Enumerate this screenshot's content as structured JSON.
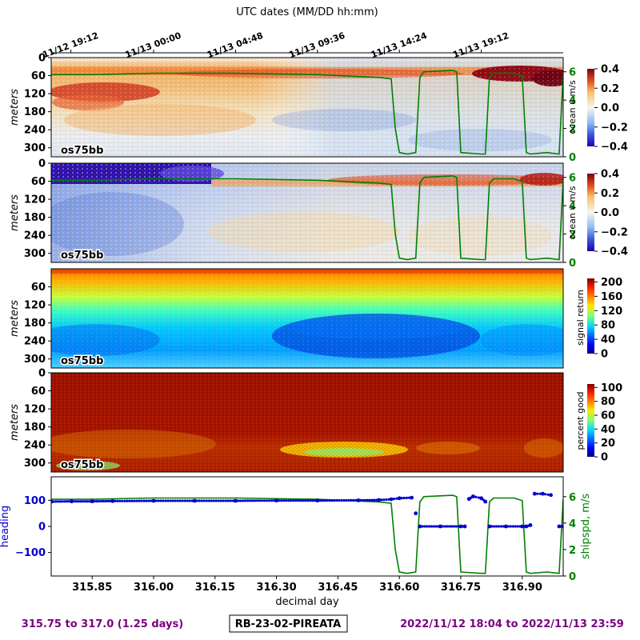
{
  "figure": {
    "top_axis_title": "UTC dates (MM/DD hh:mm)",
    "top_ticks": [
      {
        "x": 315.798,
        "label": "11/12 19:12"
      },
      {
        "x": 316.0,
        "label": "11/13 00:00"
      },
      {
        "x": 316.2,
        "label": "11/13 04:48"
      },
      {
        "x": 316.4,
        "label": "11/13 09:36"
      },
      {
        "x": 316.6,
        "label": "11/13 14:24"
      },
      {
        "x": 316.8,
        "label": "11/13 19:12"
      }
    ],
    "footer": {
      "range": "315.75 to 317.0 (1.25 days)",
      "cruise": "RB-23-02-PIREATA",
      "dates": "2022/11/12 18:04 to 2022/11/13 23:59"
    },
    "colors": {
      "title_purple": "#7b0082",
      "shipspd_green": "#008000",
      "heading_blue": "#0000cc"
    }
  },
  "chart_data": [
    {
      "type": "heatmap",
      "panel": "ocean-u",
      "instrument_label": "os75bb",
      "ylabel": "meters",
      "yticks": [
        0,
        60,
        120,
        180,
        240,
        300
      ],
      "ylim": [
        330,
        0
      ],
      "colorbar": {
        "label": "ocean u m/s",
        "ticks": [
          "0.4",
          "0.2",
          "0.0",
          "−0.2",
          "−0.4"
        ],
        "range": [
          -0.4,
          0.4
        ],
        "colormap": "RdYlBu_r"
      },
      "right_axis": {
        "ticks": [
          "6",
          "4",
          "2",
          "0"
        ],
        "range": [
          0,
          7
        ],
        "color": "#008000"
      }
    },
    {
      "type": "heatmap",
      "panel": "ocean-v",
      "instrument_label": "os75bb",
      "ylabel": "meters",
      "yticks": [
        0,
        60,
        120,
        180,
        240,
        300
      ],
      "ylim": [
        330,
        0
      ],
      "colorbar": {
        "label": "ocean v m/s",
        "ticks": [
          "0.4",
          "0.2",
          "0.0",
          "−0.2",
          "−0.4"
        ],
        "range": [
          -0.4,
          0.4
        ],
        "colormap": "RdYlBu_r"
      },
      "right_axis": {
        "ticks": [
          "6",
          "4",
          "2",
          "0"
        ],
        "range": [
          0,
          7
        ],
        "color": "#008000"
      }
    },
    {
      "type": "heatmap",
      "panel": "signal-return",
      "instrument_label": "os75bb",
      "ylabel": "meters",
      "yticks": [
        60,
        120,
        180,
        240,
        300
      ],
      "ylim": [
        330,
        0
      ],
      "colorbar": {
        "label": "signal return",
        "ticks": [
          "200",
          "160",
          "120",
          "80",
          "40",
          "0"
        ],
        "range": [
          0,
          210
        ],
        "colormap": "jet"
      }
    },
    {
      "type": "heatmap",
      "panel": "percent-good",
      "instrument_label": "os75bb",
      "ylabel": "meters",
      "yticks": [
        0,
        60,
        120,
        180,
        240,
        300
      ],
      "ylim": [
        330,
        0
      ],
      "colorbar": {
        "label": "percent good",
        "ticks": [
          "100",
          "80",
          "60",
          "40",
          "20",
          "0"
        ],
        "range": [
          0,
          105
        ],
        "colormap": "jet"
      }
    },
    {
      "type": "line",
      "panel": "heading-shipspd",
      "xlabel": "decimal day",
      "xticks": [
        "315.85",
        "316.00",
        "316.15",
        "316.30",
        "316.45",
        "316.60",
        "316.75",
        "316.90"
      ],
      "xlim": [
        315.75,
        317.0
      ],
      "ylabel": "heading",
      "yticks": [
        "100",
        "0",
        "−100"
      ],
      "ylim": [
        -190,
        190
      ],
      "right_ylabel": "shipspd, m/s",
      "right_yticks": [
        "6",
        "4",
        "2",
        "0"
      ],
      "right_ylim": [
        0,
        7.5
      ],
      "series": [
        {
          "name": "heading",
          "color": "#0000cc",
          "style": "points",
          "x": [
            315.75,
            315.8,
            315.85,
            315.9,
            316.0,
            316.1,
            316.2,
            316.3,
            316.4,
            316.5,
            316.55,
            316.58,
            316.6,
            316.63,
            316.64,
            316.65,
            316.7,
            316.75,
            316.76,
            316.77,
            316.78,
            316.8,
            316.81,
            316.82,
            316.86,
            316.9,
            316.91,
            316.92,
            316.93,
            316.95,
            316.97,
            316.99,
            317.0
          ],
          "y": [
            95,
            96,
            96,
            97,
            98,
            98,
            98,
            99,
            99,
            100,
            101,
            104,
            108,
            110,
            50,
            0,
            0,
            0,
            0,
            105,
            115,
            108,
            95,
            0,
            0,
            0,
            0,
            5,
            125,
            125,
            120,
            0,
            0
          ]
        },
        {
          "name": "shipspd",
          "color": "#008000",
          "style": "line",
          "x": [
            315.75,
            315.85,
            316.0,
            316.2,
            316.4,
            316.55,
            316.58,
            316.59,
            316.6,
            316.62,
            316.64,
            316.65,
            316.66,
            316.73,
            316.74,
            316.75,
            316.8,
            316.81,
            316.82,
            316.83,
            316.88,
            316.9,
            316.91,
            316.92,
            316.96,
            316.99,
            317.0
          ],
          "y": [
            5.8,
            5.8,
            5.9,
            5.9,
            5.8,
            5.6,
            5.5,
            2.0,
            0.3,
            0.2,
            0.3,
            5.6,
            6.0,
            6.1,
            6.0,
            0.3,
            0.2,
            0.2,
            5.6,
            5.9,
            5.9,
            5.7,
            0.3,
            0.2,
            0.3,
            0.2,
            5.8
          ]
        }
      ]
    }
  ]
}
